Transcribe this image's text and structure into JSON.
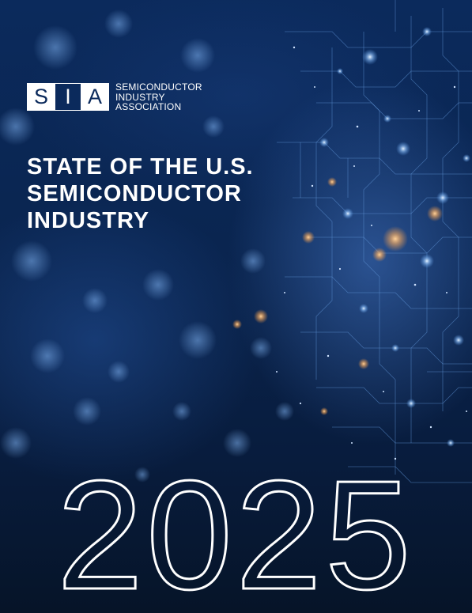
{
  "logo": {
    "letters": [
      "S",
      "I",
      "A"
    ],
    "lines": [
      "SEMICONDUCTOR",
      "INDUSTRY",
      "ASSOCIATION"
    ]
  },
  "title": {
    "lines": [
      "STATE OF THE U.S.",
      "SEMICONDUCTOR",
      "INDUSTRY"
    ]
  },
  "year": "2025",
  "colors": {
    "navy": "#0b2a5c",
    "white": "#ffffff",
    "glow_orange": "#ffb46a",
    "glow_blue": "#8fc3ff"
  }
}
